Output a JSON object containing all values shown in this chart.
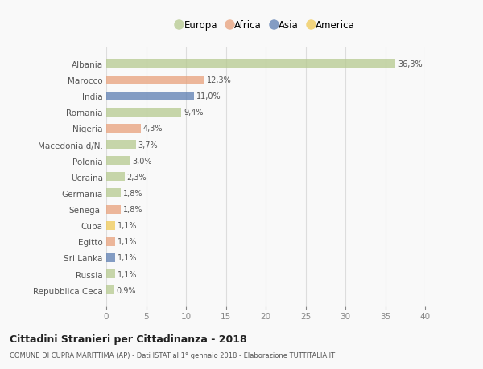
{
  "categories": [
    "Repubblica Ceca",
    "Russia",
    "Sri Lanka",
    "Egitto",
    "Cuba",
    "Senegal",
    "Germania",
    "Ucraina",
    "Polonia",
    "Macedonia d/N.",
    "Nigeria",
    "Romania",
    "India",
    "Marocco",
    "Albania"
  ],
  "values": [
    0.9,
    1.1,
    1.1,
    1.1,
    1.1,
    1.8,
    1.8,
    2.3,
    3.0,
    3.7,
    4.3,
    9.4,
    11.0,
    12.3,
    36.3
  ],
  "labels": [
    "0,9%",
    "1,1%",
    "1,1%",
    "1,1%",
    "1,1%",
    "1,8%",
    "1,8%",
    "2,3%",
    "3,0%",
    "3,7%",
    "4,3%",
    "9,4%",
    "11,0%",
    "12,3%",
    "36,3%"
  ],
  "colors": [
    "#b5c98e",
    "#b5c98e",
    "#5b7db1",
    "#e8a07a",
    "#f0c955",
    "#e8a07a",
    "#b5c98e",
    "#b5c98e",
    "#b5c98e",
    "#b5c98e",
    "#e8a07a",
    "#b5c98e",
    "#5b7db1",
    "#e8a07a",
    "#b5c98e"
  ],
  "legend_labels": [
    "Europa",
    "Africa",
    "Asia",
    "America"
  ],
  "legend_colors": [
    "#b5c98e",
    "#e8a07a",
    "#5b7db1",
    "#f0c955"
  ],
  "xlim": [
    0,
    40
  ],
  "xticks": [
    0,
    5,
    10,
    15,
    20,
    25,
    30,
    35,
    40
  ],
  "title": "Cittadini Stranieri per Cittadinanza - 2018",
  "subtitle": "COMUNE DI CUPRA MARITTIMA (AP) - Dati ISTAT al 1° gennaio 2018 - Elaborazione TUTTITALIA.IT",
  "background_color": "#f9f9f9",
  "grid_color": "#dddddd",
  "bar_alpha": 0.75,
  "bar_height": 0.55
}
